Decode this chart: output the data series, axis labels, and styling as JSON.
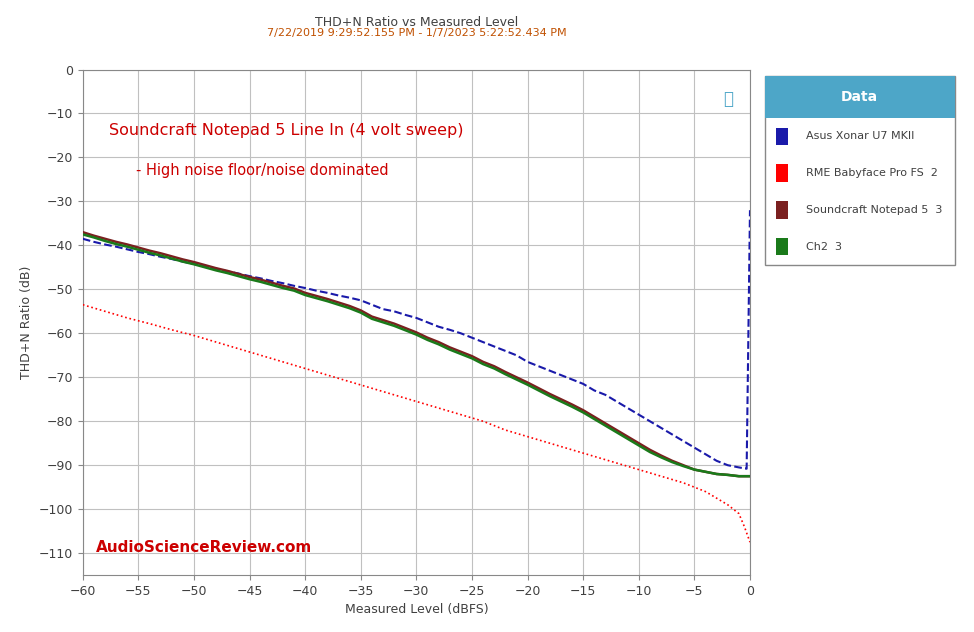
{
  "title": "THD+N Ratio vs Measured Level",
  "subtitle": "7/22/2019 9:29:52.155 PM - 1/7/2023 5:22:52.434 PM",
  "annotation_main": "Soundcraft Notepad 5 Line In (4 volt sweep)",
  "annotation_sub": "- High noise floor/noise dominated",
  "watermark": "AudioScienceReview.com",
  "xlabel": "Measured Level (dBFS)",
  "ylabel": "THD+N Ratio (dB)",
  "xlim": [
    -60,
    0
  ],
  "ylim": [
    -115,
    0
  ],
  "xticks": [
    -60,
    -55,
    -50,
    -45,
    -40,
    -35,
    -30,
    -25,
    -20,
    -15,
    -10,
    -5,
    0
  ],
  "yticks": [
    0,
    -10,
    -20,
    -30,
    -40,
    -50,
    -60,
    -70,
    -80,
    -90,
    -100,
    -110
  ],
  "bg_color": "#ffffff",
  "grid_color": "#c0c0c0",
  "legend_title": "Data",
  "legend_header_color": "#4da6c8",
  "title_color": "#404040",
  "subtitle_color": "#c05000",
  "annotation_color": "#cc0000",
  "watermark_color": "#cc0000",
  "series": [
    {
      "label": "Asus Xonar U7 MKII",
      "color": "#1a1aaa",
      "linestyle": "--",
      "linewidth": 1.5,
      "x": [
        -60,
        -59,
        -58,
        -57,
        -56,
        -55,
        -54,
        -53,
        -52,
        -51,
        -50,
        -49,
        -48,
        -47,
        -46,
        -45,
        -44,
        -43,
        -42,
        -41,
        -40,
        -39,
        -38,
        -37,
        -36,
        -35,
        -34,
        -33,
        -32,
        -31,
        -30,
        -29,
        -28,
        -27,
        -26,
        -25,
        -24,
        -23,
        -22,
        -21,
        -20,
        -19,
        -18,
        -17,
        -16,
        -15,
        -14,
        -13,
        -12,
        -11,
        -10,
        -9,
        -8,
        -7,
        -6,
        -5,
        -4,
        -3,
        -2,
        -1,
        -0.3,
        0
      ],
      "y": [
        -38.5,
        -39.2,
        -39.8,
        -40.3,
        -40.9,
        -41.5,
        -42.0,
        -42.6,
        -43.1,
        -43.7,
        -44.2,
        -44.8,
        -45.3,
        -45.9,
        -46.4,
        -47.0,
        -47.5,
        -48.1,
        -48.6,
        -49.2,
        -49.7,
        -50.3,
        -50.8,
        -51.4,
        -51.9,
        -52.5,
        -53.5,
        -54.5,
        -55.0,
        -55.8,
        -56.5,
        -57.5,
        -58.5,
        -59.2,
        -60.0,
        -61.0,
        -62.0,
        -63.0,
        -64.0,
        -65.0,
        -66.5,
        -67.5,
        -68.5,
        -69.5,
        -70.5,
        -71.5,
        -73.0,
        -74.0,
        -75.5,
        -77.0,
        -78.5,
        -80.0,
        -81.5,
        -83.0,
        -84.5,
        -86.0,
        -87.5,
        -89.0,
        -90.0,
        -90.5,
        -90.8,
        -32.0
      ]
    },
    {
      "label": "RME Babyface Pro FS  2",
      "color": "#FF0000",
      "linestyle": "dotted",
      "linewidth": 1.2,
      "x": [
        -60,
        -58,
        -56,
        -54,
        -52,
        -50,
        -48,
        -46,
        -44,
        -42,
        -40,
        -38,
        -36,
        -34,
        -32,
        -30,
        -28,
        -26,
        -24,
        -22,
        -20,
        -18,
        -16,
        -14,
        -12,
        -10,
        -8,
        -6,
        -4,
        -2,
        -1,
        -0.5,
        0
      ],
      "y": [
        -53.5,
        -55.0,
        -56.5,
        -57.8,
        -59.2,
        -60.5,
        -62.0,
        -63.5,
        -65.0,
        -66.5,
        -68.0,
        -69.5,
        -71.0,
        -72.5,
        -74.0,
        -75.5,
        -77.0,
        -78.5,
        -80.0,
        -82.0,
        -83.5,
        -85.0,
        -86.5,
        -88.0,
        -89.5,
        -91.0,
        -92.5,
        -94.0,
        -96.0,
        -99.0,
        -101.0,
        -104.0,
        -107.5
      ]
    },
    {
      "label": "Soundcraft Notepad 5  3",
      "color": "#7B2020",
      "linestyle": "-",
      "linewidth": 1.8,
      "x": [
        -60,
        -59,
        -58,
        -57,
        -56,
        -55,
        -54,
        -53,
        -52,
        -51,
        -50,
        -49,
        -48,
        -47,
        -46,
        -45,
        -44,
        -43,
        -42,
        -41,
        -40,
        -39,
        -38,
        -37,
        -36,
        -35,
        -34,
        -33,
        -32,
        -31,
        -30,
        -29,
        -28,
        -27,
        -26,
        -25,
        -24,
        -23,
        -22,
        -21,
        -20,
        -19,
        -18,
        -17,
        -16,
        -15,
        -14,
        -13,
        -12,
        -11,
        -10,
        -9,
        -8,
        -7,
        -6,
        -5,
        -4,
        -3,
        -2,
        -1,
        0
      ],
      "y": [
        -37.0,
        -37.8,
        -38.5,
        -39.2,
        -39.8,
        -40.5,
        -41.2,
        -41.8,
        -42.5,
        -43.2,
        -43.8,
        -44.5,
        -45.2,
        -45.8,
        -46.5,
        -47.2,
        -47.8,
        -48.5,
        -49.2,
        -49.8,
        -50.8,
        -51.5,
        -52.2,
        -53.0,
        -53.8,
        -54.8,
        -56.2,
        -57.0,
        -57.8,
        -58.8,
        -59.8,
        -61.0,
        -62.0,
        -63.2,
        -64.2,
        -65.2,
        -66.5,
        -67.5,
        -68.8,
        -70.0,
        -71.2,
        -72.5,
        -73.8,
        -75.0,
        -76.2,
        -77.5,
        -79.0,
        -80.5,
        -82.0,
        -83.5,
        -85.0,
        -86.5,
        -87.8,
        -89.0,
        -90.0,
        -91.0,
        -91.5,
        -92.0,
        -92.2,
        -92.5,
        -92.5
      ]
    },
    {
      "label": "Ch2  3",
      "color": "#1a7a1a",
      "linestyle": "-",
      "linewidth": 1.8,
      "x": [
        -60,
        -59,
        -58,
        -57,
        -56,
        -55,
        -54,
        -53,
        -52,
        -51,
        -50,
        -49,
        -48,
        -47,
        -46,
        -45,
        -44,
        -43,
        -42,
        -41,
        -40,
        -39,
        -38,
        -37,
        -36,
        -35,
        -34,
        -33,
        -32,
        -31,
        -30,
        -29,
        -28,
        -27,
        -26,
        -25,
        -24,
        -23,
        -22,
        -21,
        -20,
        -19,
        -18,
        -17,
        -16,
        -15,
        -14,
        -13,
        -12,
        -11,
        -10,
        -9,
        -8,
        -7,
        -6,
        -5,
        -4,
        -3,
        -2,
        -1,
        0
      ],
      "y": [
        -37.5,
        -38.2,
        -39.0,
        -39.7,
        -40.3,
        -41.0,
        -41.7,
        -42.3,
        -43.0,
        -43.7,
        -44.3,
        -45.0,
        -45.7,
        -46.3,
        -47.0,
        -47.7,
        -48.3,
        -49.0,
        -49.7,
        -50.3,
        -51.3,
        -52.0,
        -52.7,
        -53.5,
        -54.3,
        -55.3,
        -56.7,
        -57.5,
        -58.3,
        -59.3,
        -60.3,
        -61.5,
        -62.5,
        -63.7,
        -64.7,
        -65.7,
        -67.0,
        -68.0,
        -69.3,
        -70.5,
        -71.7,
        -73.0,
        -74.3,
        -75.5,
        -76.7,
        -78.0,
        -79.5,
        -81.0,
        -82.5,
        -84.0,
        -85.5,
        -87.0,
        -88.2,
        -89.3,
        -90.2,
        -91.0,
        -91.5,
        -92.0,
        -92.2,
        -92.5,
        -92.5
      ]
    }
  ]
}
